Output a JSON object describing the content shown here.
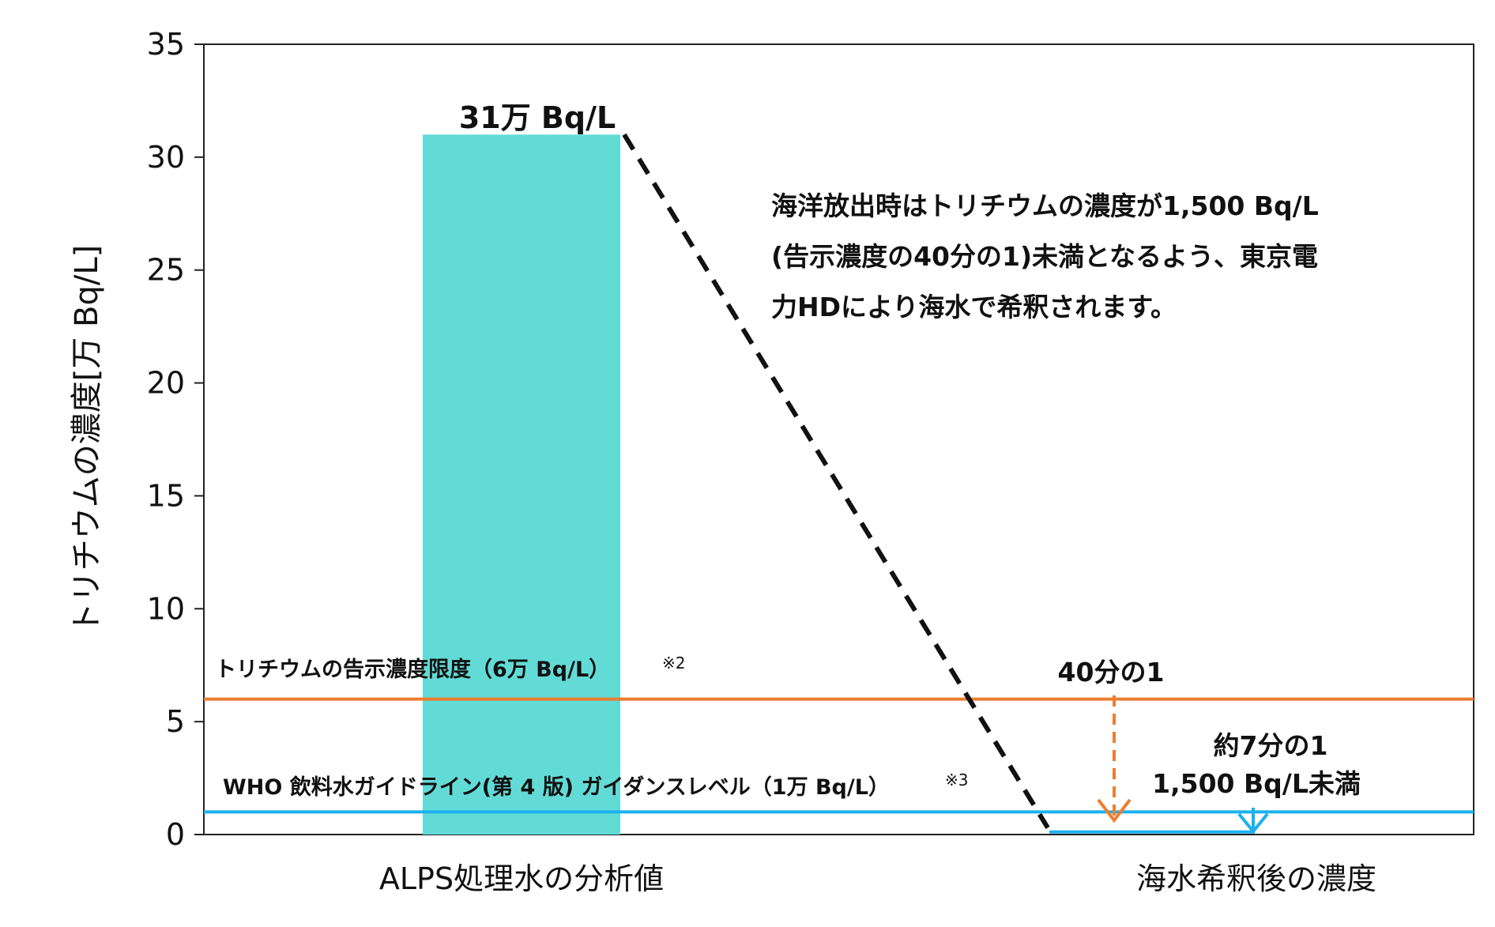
{
  "chart_data": {
    "type": "bar",
    "ylabel": "トリチウムの濃度[万 Bq/L]",
    "ylim": [
      0,
      35
    ],
    "yticks": [
      "0",
      "5",
      "10",
      "15",
      "20",
      "25",
      "30",
      "35"
    ],
    "grid": false,
    "categories": [
      "ALPS処理水の分析値",
      "海水希釈後の濃度"
    ],
    "values": [
      31,
      0.15
    ],
    "bar_color": "#62DBD6",
    "data_label": "31万 Bq/L",
    "reference_lines": [
      {
        "value": 6,
        "color": "#ED7D31",
        "label": "トリチウムの告示濃度限度（6万 Bq/L）",
        "note": "※2"
      },
      {
        "value": 1,
        "color": "#1BB0EE",
        "label": "WHO 飲料水ガイドライン(第 4 版) ガイダンスレベル（1万 Bq/L）",
        "note": "※3"
      }
    ],
    "annotations": {
      "main": [
        "海洋放出時はトリチウムの濃度が1,500 Bq/L",
        "(告示濃度の40分の1)未満となるよう、東京電",
        "力HDにより海水で希釈されます。"
      ],
      "ratio_notice": "40分の1",
      "ratio_who": "約7分の1",
      "result": "1,500 Bq/L未満"
    }
  }
}
